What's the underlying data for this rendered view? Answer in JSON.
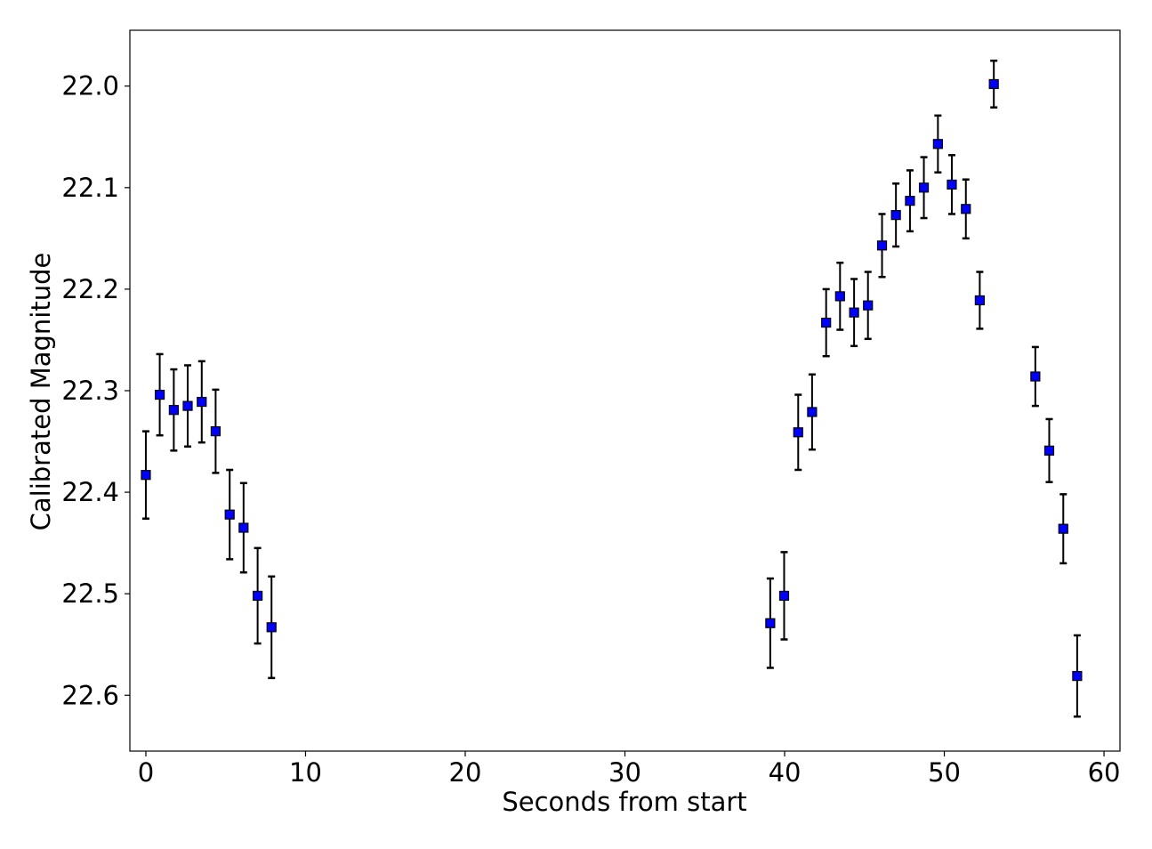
{
  "chart_data": {
    "type": "scatter",
    "title": "",
    "xlabel": "Seconds from start",
    "ylabel": "Calibrated Magnitude",
    "xlim": [
      -1,
      61
    ],
    "ylim": [
      22.655,
      21.945
    ],
    "y_inverted": true,
    "x_ticks": [
      0,
      10,
      20,
      30,
      40,
      50,
      60
    ],
    "x_tick_labels": [
      "0",
      "10",
      "20",
      "30",
      "40",
      "50",
      "60"
    ],
    "y_ticks": [
      22.0,
      22.1,
      22.2,
      22.3,
      22.4,
      22.5,
      22.6
    ],
    "y_tick_labels": [
      "22.0",
      "22.1",
      "22.2",
      "22.3",
      "22.4",
      "22.5",
      "22.6"
    ],
    "grid": false,
    "legend": "none",
    "marker": "square",
    "colors": {
      "marker_fill": "#0000ff",
      "marker_edge": "#000000",
      "errorbar": "#000000"
    },
    "points": [
      {
        "x": 0.0,
        "y": 22.383,
        "err": 0.043
      },
      {
        "x": 0.87,
        "y": 22.304,
        "err": 0.04
      },
      {
        "x": 1.75,
        "y": 22.319,
        "err": 0.04
      },
      {
        "x": 2.62,
        "y": 22.315,
        "err": 0.04
      },
      {
        "x": 3.5,
        "y": 22.311,
        "err": 0.04
      },
      {
        "x": 4.37,
        "y": 22.34,
        "err": 0.041
      },
      {
        "x": 5.25,
        "y": 22.422,
        "err": 0.044
      },
      {
        "x": 6.12,
        "y": 22.435,
        "err": 0.044
      },
      {
        "x": 7.0,
        "y": 22.502,
        "err": 0.047
      },
      {
        "x": 7.87,
        "y": 22.533,
        "err": 0.05
      },
      {
        "x": 39.1,
        "y": 22.529,
        "err": 0.044
      },
      {
        "x": 39.97,
        "y": 22.502,
        "err": 0.043
      },
      {
        "x": 40.85,
        "y": 22.341,
        "err": 0.037
      },
      {
        "x": 41.72,
        "y": 22.321,
        "err": 0.037
      },
      {
        "x": 42.6,
        "y": 22.233,
        "err": 0.033
      },
      {
        "x": 43.47,
        "y": 22.207,
        "err": 0.033
      },
      {
        "x": 44.35,
        "y": 22.223,
        "err": 0.033
      },
      {
        "x": 45.22,
        "y": 22.216,
        "err": 0.033
      },
      {
        "x": 46.1,
        "y": 22.157,
        "err": 0.031
      },
      {
        "x": 46.97,
        "y": 22.127,
        "err": 0.031
      },
      {
        "x": 47.85,
        "y": 22.113,
        "err": 0.03
      },
      {
        "x": 48.72,
        "y": 22.1,
        "err": 0.03
      },
      {
        "x": 49.6,
        "y": 22.057,
        "err": 0.028
      },
      {
        "x": 50.47,
        "y": 22.097,
        "err": 0.029
      },
      {
        "x": 51.35,
        "y": 22.121,
        "err": 0.029
      },
      {
        "x": 52.22,
        "y": 22.211,
        "err": 0.028
      },
      {
        "x": 53.1,
        "y": 21.998,
        "err": 0.023
      },
      {
        "x": 55.7,
        "y": 22.286,
        "err": 0.029
      },
      {
        "x": 56.57,
        "y": 22.359,
        "err": 0.031
      },
      {
        "x": 57.45,
        "y": 22.436,
        "err": 0.034
      },
      {
        "x": 58.32,
        "y": 22.581,
        "err": 0.04
      }
    ]
  }
}
